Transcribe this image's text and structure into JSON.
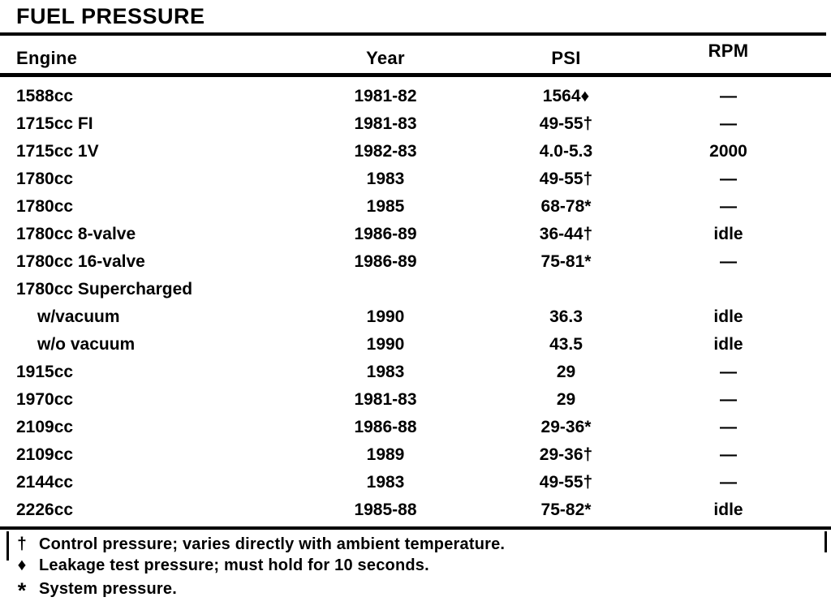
{
  "title": "FUEL PRESSURE",
  "table": {
    "headers": {
      "engine": "Engine",
      "year": "Year",
      "psi": "PSI",
      "rpm": "RPM"
    },
    "rows": [
      {
        "engine": "1588cc",
        "year": "1981-82",
        "psi": "1564♦",
        "rpm": "—"
      },
      {
        "engine": "1715cc FI",
        "year": "1981-83",
        "psi": "49-55†",
        "rpm": "—"
      },
      {
        "engine": "1715cc 1V",
        "year": "1982-83",
        "psi": "4.0-5.3",
        "rpm": "2000"
      },
      {
        "engine": "1780cc",
        "year": "1983",
        "psi": "49-55†",
        "rpm": "—"
      },
      {
        "engine": "1780cc",
        "year": "1985",
        "psi": "68-78*",
        "rpm": "—"
      },
      {
        "engine": "1780cc 8-valve",
        "year": "1986-89",
        "psi": "36-44†",
        "rpm": "idle"
      },
      {
        "engine": "1780cc 16-valve",
        "year": "1986-89",
        "psi": "75-81*",
        "rpm": "—"
      },
      {
        "engine": "1780cc Supercharged",
        "year": "",
        "psi": "",
        "rpm": ""
      },
      {
        "engine": "w/vacuum",
        "year": "1990",
        "psi": "36.3",
        "rpm": "idle"
      },
      {
        "engine": "w/o vacuum",
        "year": "1990",
        "psi": "43.5",
        "rpm": "idle"
      },
      {
        "engine": "1915cc",
        "year": "1983",
        "psi": "29",
        "rpm": "—"
      },
      {
        "engine": "1970cc",
        "year": "1981-83",
        "psi": "29",
        "rpm": "—"
      },
      {
        "engine": "2109cc",
        "year": "1986-88",
        "psi": "29-36*",
        "rpm": "—"
      },
      {
        "engine": "2109cc",
        "year": "1989",
        "psi": "29-36†",
        "rpm": "—"
      },
      {
        "engine": "2144cc",
        "year": "1983",
        "psi": "49-55†",
        "rpm": "—"
      },
      {
        "engine": "2226cc",
        "year": "1985-88",
        "psi": "75-82*",
        "rpm": "idle"
      }
    ]
  },
  "footnotes": [
    {
      "symbol": "†",
      "text": "Control pressure; varies directly with ambient temperature."
    },
    {
      "symbol": "♦",
      "text": "Leakage test pressure; must hold for 10 seconds."
    },
    {
      "symbol": "*",
      "text": "System pressure."
    }
  ]
}
